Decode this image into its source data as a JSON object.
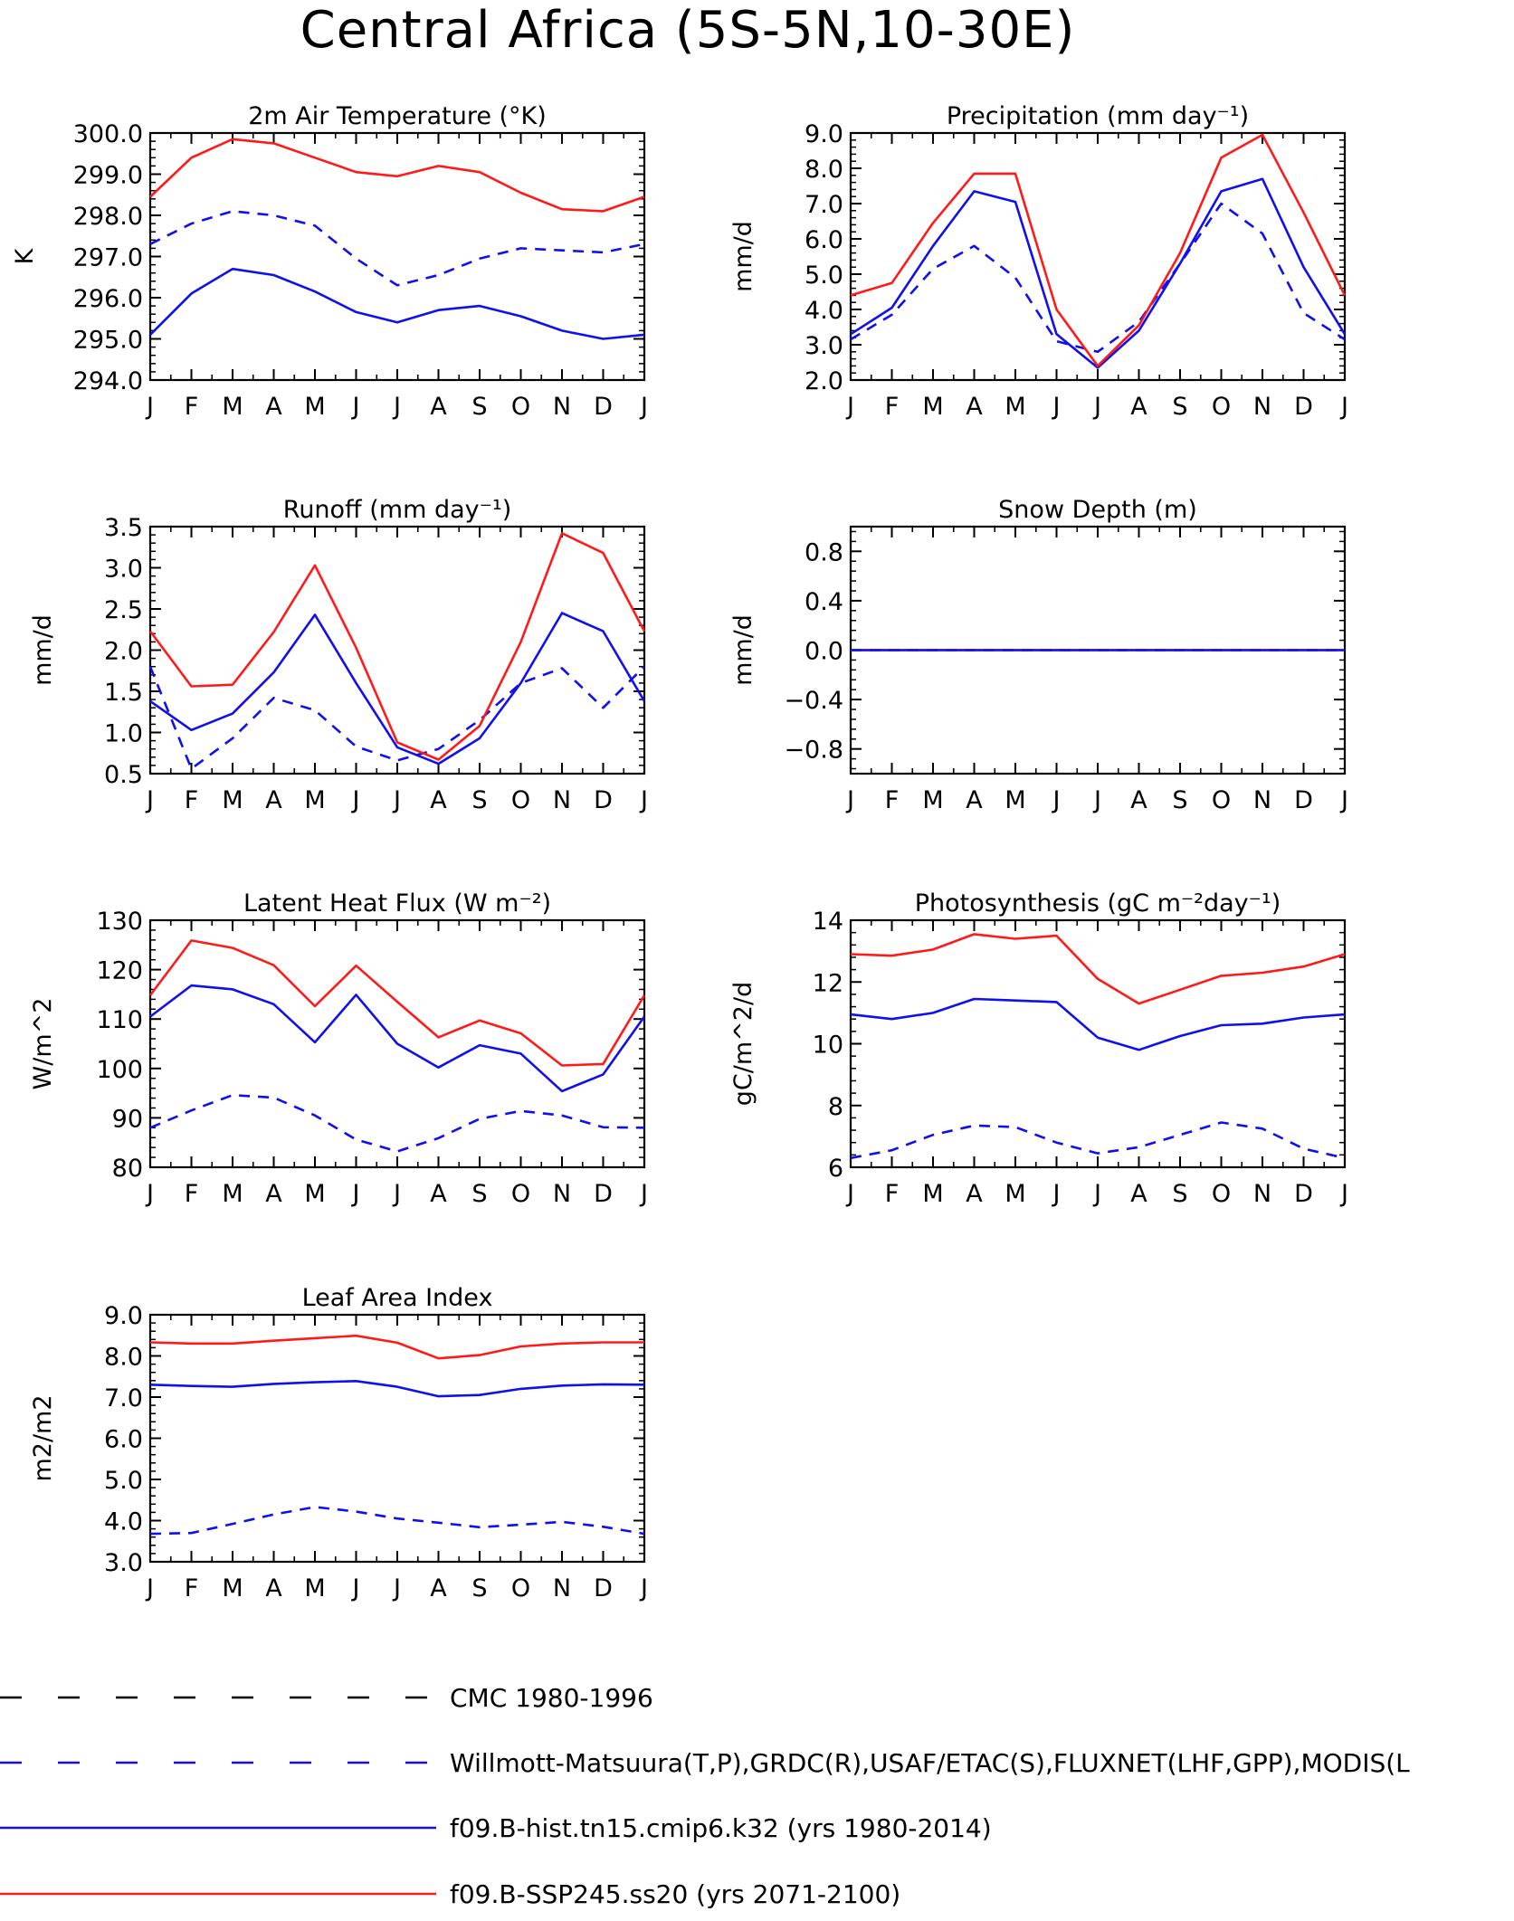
{
  "title": "Central Africa (5S-5N,10-30E)",
  "months": [
    "J",
    "F",
    "M",
    "A",
    "M",
    "J",
    "J",
    "A",
    "S",
    "O",
    "N",
    "D",
    "J"
  ],
  "colors": {
    "red": "#ff1a1a",
    "blue": "#1010ee",
    "black": "#000000"
  },
  "legend": [
    {
      "label": "CMC 1980-1996",
      "color": "#000000",
      "dashed": true
    },
    {
      "label": "Willmott-Matsuura(T,P),GRDC(R),USAF/ETAC(S),FLUXNET(LHF,GPP),MODIS(L",
      "color": "#1010ee",
      "dashed": true
    },
    {
      "label": "f09.B-hist.tn15.cmip6.k32 (yrs 1980-2014)",
      "color": "#1010ee",
      "dashed": false
    },
    {
      "label": "f09.B-SSP245.ss20 (yrs 2071-2100)",
      "color": "#ff1a1a",
      "dashed": false
    }
  ],
  "chart_data": [
    {
      "type": "line",
      "title": "2m Air Temperature (°K)",
      "ylabel": "K",
      "ylim": [
        294,
        300
      ],
      "yticks": [
        "294.0",
        "295.0",
        "296.0",
        "297.0",
        "298.0",
        "299.0",
        "300.0"
      ],
      "x": [
        "J",
        "F",
        "M",
        "A",
        "M",
        "J",
        "J",
        "A",
        "S",
        "O",
        "N",
        "D",
        "J"
      ],
      "series": [
        {
          "values": [
            297.3,
            297.8,
            298.1,
            298.0,
            297.75,
            296.95,
            296.3,
            296.55,
            296.95,
            297.2,
            297.15,
            297.1,
            297.3
          ],
          "color": "#1010ee",
          "dashed": true
        },
        {
          "values": [
            295.1,
            296.1,
            296.7,
            296.55,
            296.15,
            295.65,
            295.4,
            295.7,
            295.8,
            295.55,
            295.2,
            295.0,
            295.1
          ],
          "color": "#1010ee",
          "dashed": false
        },
        {
          "values": [
            298.45,
            299.4,
            299.85,
            299.75,
            299.4,
            299.05,
            298.95,
            299.2,
            299.05,
            298.55,
            298.15,
            298.1,
            298.45
          ],
          "color": "#ff1a1a",
          "dashed": false
        }
      ]
    },
    {
      "type": "line",
      "title": "Precipitation (mm day⁻¹)",
      "ylabel": "mm/d",
      "ylim": [
        2,
        9
      ],
      "yticks": [
        "2.0",
        "3.0",
        "4.0",
        "5.0",
        "6.0",
        "7.0",
        "8.0",
        "9.0"
      ],
      "x": [
        "J",
        "F",
        "M",
        "A",
        "M",
        "J",
        "J",
        "A",
        "S",
        "O",
        "N",
        "D",
        "J"
      ],
      "series": [
        {
          "values": [
            3.15,
            3.85,
            5.15,
            5.8,
            4.9,
            3.1,
            2.8,
            3.65,
            5.3,
            7.0,
            6.15,
            3.9,
            3.15
          ],
          "color": "#1010ee",
          "dashed": true
        },
        {
          "values": [
            3.3,
            4.05,
            5.8,
            7.35,
            7.05,
            3.3,
            2.35,
            3.4,
            5.3,
            7.35,
            7.7,
            5.2,
            3.3
          ],
          "color": "#1010ee",
          "dashed": false
        },
        {
          "values": [
            4.4,
            4.75,
            6.45,
            7.85,
            7.85,
            4.0,
            2.4,
            3.55,
            5.6,
            8.3,
            8.95,
            6.75,
            4.4
          ],
          "color": "#ff1a1a",
          "dashed": false
        }
      ]
    },
    {
      "type": "line",
      "title": "Runoff (mm day⁻¹)",
      "ylabel": "mm/d",
      "ylim": [
        0.5,
        3.5
      ],
      "yticks": [
        "0.5",
        "1.0",
        "1.5",
        "2.0",
        "2.5",
        "3.0",
        "3.5"
      ],
      "x": [
        "J",
        "F",
        "M",
        "A",
        "M",
        "J",
        "J",
        "A",
        "S",
        "O",
        "N",
        "D",
        "J"
      ],
      "series": [
        {
          "values": [
            1.8,
            0.56,
            0.93,
            1.42,
            1.27,
            0.83,
            0.66,
            0.8,
            1.15,
            1.6,
            1.78,
            1.3,
            1.8
          ],
          "color": "#1010ee",
          "dashed": true
        },
        {
          "values": [
            1.38,
            1.03,
            1.23,
            1.73,
            2.43,
            1.6,
            0.82,
            0.62,
            0.93,
            1.6,
            2.45,
            2.23,
            1.38
          ],
          "color": "#1010ee",
          "dashed": false
        },
        {
          "values": [
            2.23,
            1.56,
            1.58,
            2.22,
            3.03,
            2.03,
            0.88,
            0.67,
            1.08,
            2.1,
            3.42,
            3.18,
            2.23
          ],
          "color": "#ff1a1a",
          "dashed": false
        }
      ]
    },
    {
      "type": "line",
      "title": "Snow Depth (m)",
      "ylabel": "mm/d",
      "ylim": [
        -1,
        1
      ],
      "yticks": [
        "−0.8",
        "−0.4",
        "0.0",
        "0.4",
        "0.8"
      ],
      "ytick_values": [
        -0.8,
        -0.4,
        0,
        0.4,
        0.8
      ],
      "x": [
        "J",
        "F",
        "M",
        "A",
        "M",
        "J",
        "J",
        "A",
        "S",
        "O",
        "N",
        "D",
        "J"
      ],
      "series": [
        {
          "values": [
            0,
            0,
            0,
            0,
            0,
            0,
            0,
            0,
            0,
            0,
            0,
            0,
            0
          ],
          "color": "#ff1a1a",
          "dashed": false
        },
        {
          "values": [
            0,
            0,
            0,
            0,
            0,
            0,
            0,
            0,
            0,
            0,
            0,
            0,
            0
          ],
          "color": "#1010ee",
          "dashed": false
        },
        {
          "values": [
            0,
            0,
            0,
            0,
            0,
            0,
            0,
            0,
            0,
            0,
            0,
            0,
            0
          ],
          "color": "#1010ee",
          "dashed": true
        }
      ]
    },
    {
      "type": "line",
      "title": "Latent Heat Flux (W m⁻²)",
      "ylabel": "W/m^2",
      "ylim": [
        80,
        130
      ],
      "yticks": [
        "80",
        "90",
        "100",
        "110",
        "120",
        "130"
      ],
      "x": [
        "J",
        "F",
        "M",
        "A",
        "M",
        "J",
        "J",
        "A",
        "S",
        "O",
        "N",
        "D",
        "J"
      ],
      "series": [
        {
          "values": [
            88.0,
            91.5,
            94.6,
            94.1,
            90.5,
            85.6,
            83.2,
            85.9,
            89.8,
            91.4,
            90.5,
            88.1,
            88.0
          ],
          "color": "#1010ee",
          "dashed": true
        },
        {
          "values": [
            110.5,
            116.8,
            116.0,
            113.0,
            105.3,
            114.9,
            105.0,
            100.2,
            104.7,
            103.0,
            95.4,
            98.8,
            110.5
          ],
          "color": "#1010ee",
          "dashed": false
        },
        {
          "values": [
            114.8,
            125.9,
            124.4,
            120.9,
            112.6,
            120.8,
            113.5,
            106.3,
            109.7,
            107.1,
            100.6,
            100.9,
            114.8
          ],
          "color": "#ff1a1a",
          "dashed": false
        }
      ]
    },
    {
      "type": "line",
      "title": "Photosynthesis (gC m⁻²day⁻¹)",
      "ylabel": "gC/m^2/d",
      "ylim": [
        6,
        14
      ],
      "yticks": [
        "6",
        "8",
        "10",
        "12",
        "14"
      ],
      "x": [
        "J",
        "F",
        "M",
        "A",
        "M",
        "J",
        "J",
        "A",
        "S",
        "O",
        "N",
        "D",
        "J"
      ],
      "series": [
        {
          "values": [
            6.3,
            6.55,
            7.05,
            7.35,
            7.3,
            6.8,
            6.45,
            6.65,
            7.05,
            7.45,
            7.25,
            6.6,
            6.3
          ],
          "color": "#1010ee",
          "dashed": true
        },
        {
          "values": [
            10.95,
            10.8,
            11.0,
            11.45,
            11.4,
            11.35,
            10.2,
            9.8,
            10.25,
            10.6,
            10.65,
            10.85,
            10.95
          ],
          "color": "#1010ee",
          "dashed": false
        },
        {
          "values": [
            12.9,
            12.85,
            13.05,
            13.55,
            13.4,
            13.5,
            12.1,
            11.3,
            11.75,
            12.2,
            12.3,
            12.5,
            12.9
          ],
          "color": "#ff1a1a",
          "dashed": false
        }
      ]
    },
    {
      "type": "line",
      "title": "Leaf Area Index",
      "ylabel": "m2/m2",
      "ylim": [
        3,
        9
      ],
      "yticks": [
        "3.0",
        "4.0",
        "5.0",
        "6.0",
        "7.0",
        "8.0",
        "9.0"
      ],
      "x": [
        "J",
        "F",
        "M",
        "A",
        "M",
        "J",
        "J",
        "A",
        "S",
        "O",
        "N",
        "D",
        "J"
      ],
      "series": [
        {
          "values": [
            3.68,
            3.7,
            3.92,
            4.15,
            4.33,
            4.22,
            4.05,
            3.95,
            3.84,
            3.9,
            3.97,
            3.85,
            3.68
          ],
          "color": "#1010ee",
          "dashed": true
        },
        {
          "values": [
            7.3,
            7.27,
            7.25,
            7.32,
            7.36,
            7.39,
            7.25,
            7.02,
            7.05,
            7.2,
            7.28,
            7.31,
            7.3
          ],
          "color": "#1010ee",
          "dashed": false
        },
        {
          "values": [
            8.33,
            8.3,
            8.3,
            8.37,
            8.43,
            8.49,
            8.32,
            7.94,
            8.02,
            8.23,
            8.3,
            8.33,
            8.33
          ],
          "color": "#ff1a1a",
          "dashed": false
        }
      ]
    }
  ]
}
